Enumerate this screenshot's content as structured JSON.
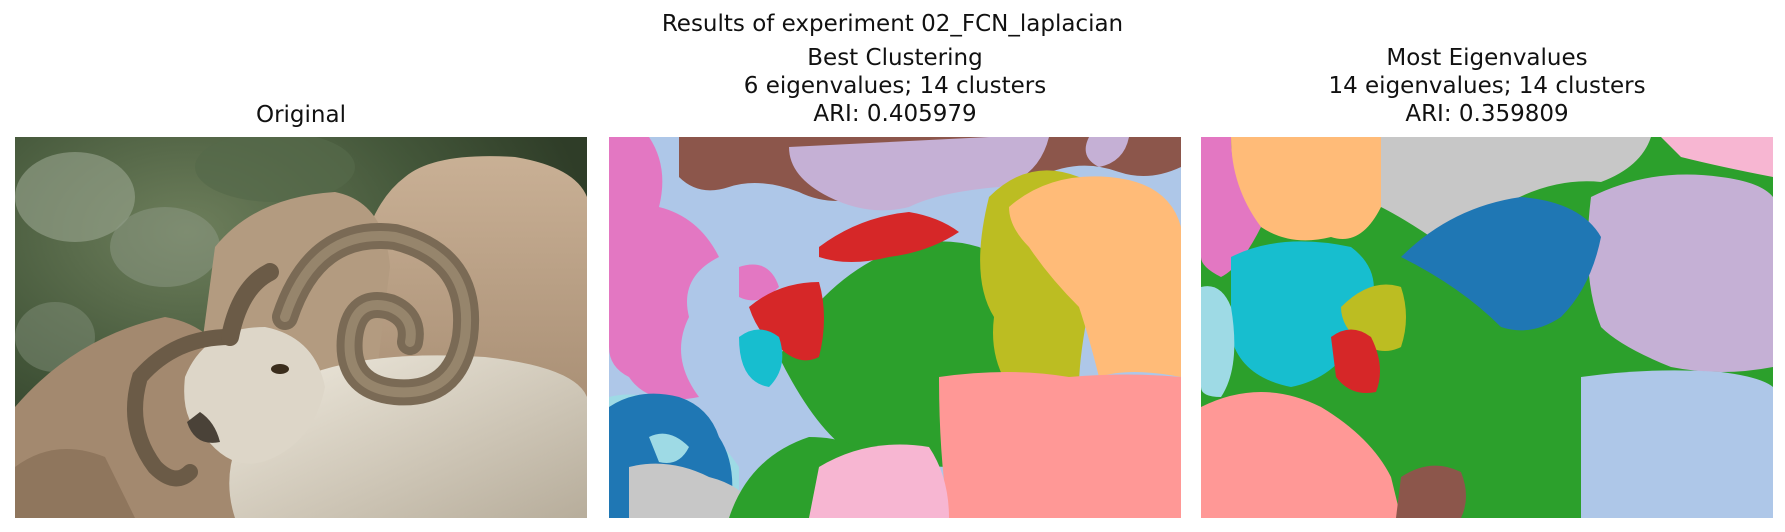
{
  "figure": {
    "suptitle": "Results of experiment 02_FCN_laplacian"
  },
  "panels": [
    {
      "title_lines": [
        "Original"
      ],
      "image": "photo of a ram with curled horns against rocks and blurred green foliage"
    },
    {
      "title_lines": [
        "Best Clustering",
        "6 eigenvalues; 14 clusters",
        "ARI: 0.405979"
      ],
      "image": "segmentation map"
    },
    {
      "title_lines": [
        "Most Eigenvalues",
        "14 eigenvalues; 14 clusters",
        "ARI: 0.359809"
      ],
      "image": "segmentation map"
    }
  ],
  "palette": {
    "blue": "#1f77b4",
    "light_blue": "#aec7e8",
    "orange": "#ffbb78",
    "green": "#2ca02c",
    "red": "#d62728",
    "pink_light": "#ff9896",
    "lavender": "#c5b0d5",
    "brown": "#8c564b",
    "pink": "#e377c2",
    "pink_pale": "#f7b6d2",
    "gray": "#c7c7c7",
    "olive": "#bcbd22",
    "cyan": "#17becf",
    "cyan_pale": "#9edae5"
  }
}
